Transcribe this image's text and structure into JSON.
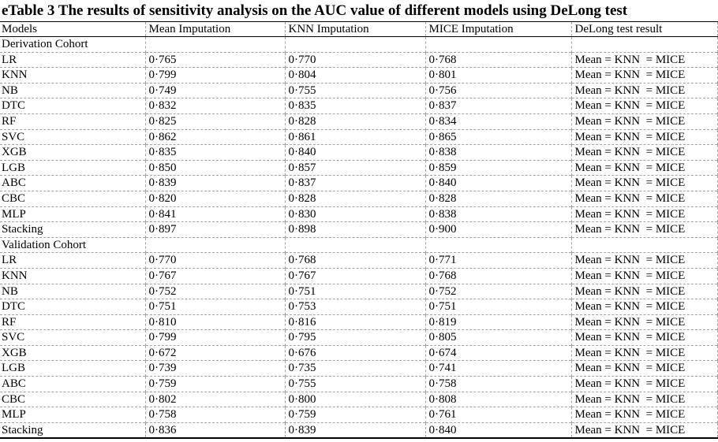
{
  "title": "eTable 3 The results of sensitivity analysis on the AUC value of different models using DeLong test",
  "table": {
    "columns": [
      "Models",
      "Mean Imputation",
      "KNN Imputation",
      "MICE Imputation",
      "DeLong test result"
    ],
    "sections": [
      {
        "name": "Derivation Cohort",
        "rows": [
          {
            "model": "LR",
            "mean": "0·765",
            "knn": "0·770",
            "mice": "0·768",
            "delong": "Mean = KNN  = MICE"
          },
          {
            "model": "KNN",
            "mean": "0·799",
            "knn": "0·804",
            "mice": "0·801",
            "delong": "Mean = KNN  = MICE"
          },
          {
            "model": "NB",
            "mean": "0·749",
            "knn": "0·755",
            "mice": "0·756",
            "delong": "Mean = KNN  = MICE"
          },
          {
            "model": "DTC",
            "mean": "0·832",
            "knn": "0·835",
            "mice": "0·837",
            "delong": "Mean = KNN  = MICE"
          },
          {
            "model": "RF",
            "mean": "0·825",
            "knn": "0·828",
            "mice": "0·834",
            "delong": "Mean = KNN  = MICE"
          },
          {
            "model": "SVC",
            "mean": "0·862",
            "knn": "0·861",
            "mice": "0·865",
            "delong": "Mean = KNN  = MICE"
          },
          {
            "model": "XGB",
            "mean": "0·835",
            "knn": "0·840",
            "mice": "0·838",
            "delong": "Mean = KNN  = MICE"
          },
          {
            "model": "LGB",
            "mean": "0·850",
            "knn": "0·857",
            "mice": "0·859",
            "delong": "Mean = KNN  = MICE"
          },
          {
            "model": "ABC",
            "mean": "0·839",
            "knn": "0·837",
            "mice": "0·840",
            "delong": "Mean = KNN  = MICE"
          },
          {
            "model": "CBC",
            "mean": "0·820",
            "knn": "0·828",
            "mice": "0·828",
            "delong": "Mean = KNN  = MICE"
          },
          {
            "model": "MLP",
            "mean": "0·841",
            "knn": "0·830",
            "mice": "0·838",
            "delong": "Mean = KNN  = MICE"
          },
          {
            "model": "Stacking",
            "mean": "0·897",
            "knn": "0·898",
            "mice": "0·900",
            "delong": "Mean = KNN  = MICE"
          }
        ]
      },
      {
        "name": "Validation Cohort",
        "rows": [
          {
            "model": "LR",
            "mean": "0·770",
            "knn": "0·768",
            "mice": "0·771",
            "delong": "Mean = KNN  = MICE"
          },
          {
            "model": "KNN",
            "mean": "0·767",
            "knn": "0·767",
            "mice": "0·768",
            "delong": "Mean = KNN  = MICE"
          },
          {
            "model": "NB",
            "mean": "0·752",
            "knn": "0·751",
            "mice": "0·752",
            "delong": "Mean = KNN  = MICE"
          },
          {
            "model": "DTC",
            "mean": "0·751",
            "knn": "0·753",
            "mice": "0·751",
            "delong": "Mean = KNN  = MICE"
          },
          {
            "model": "RF",
            "mean": "0·810",
            "knn": "0·816",
            "mice": "0·819",
            "delong": "Mean = KNN  = MICE"
          },
          {
            "model": "SVC",
            "mean": "0·799",
            "knn": "0·795",
            "mice": "0·805",
            "delong": "Mean = KNN  = MICE"
          },
          {
            "model": "XGB",
            "mean": "0·672",
            "knn": "0·676",
            "mice": "0·674",
            "delong": "Mean = KNN  = MICE"
          },
          {
            "model": "LGB",
            "mean": "0·739",
            "knn": "0·735",
            "mice": "0·741",
            "delong": "Mean = KNN  = MICE"
          },
          {
            "model": "ABC",
            "mean": "0·759",
            "knn": "0·755",
            "mice": "0·758",
            "delong": "Mean = KNN  = MICE"
          },
          {
            "model": "CBC",
            "mean": "0·802",
            "knn": "0·800",
            "mice": "0·808",
            "delong": "Mean = KNN  = MICE"
          },
          {
            "model": "MLP",
            "mean": "0·758",
            "knn": "0·759",
            "mice": "0·761",
            "delong": "Mean = KNN  = MICE"
          },
          {
            "model": "Stacking",
            "mean": "0·836",
            "knn": "0·839",
            "mice": "0·840",
            "delong": "Mean = KNN  = MICE"
          }
        ]
      }
    ]
  }
}
